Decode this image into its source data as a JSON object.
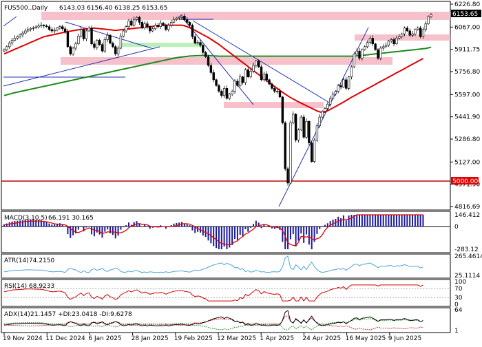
{
  "header": {
    "symbol": "FUS500..Daily",
    "ohlc": "6143.03 6156.40 6138.25 6153.65"
  },
  "colors": {
    "bull": "#000000",
    "bear": "#000000",
    "ma_red": "#e00000",
    "ma_green": "#1a8a1a",
    "zone_pink": "#f7c1cc",
    "zone_green": "#b9f2b9",
    "trend_blue": "#1f2fb0",
    "support_red": "#c00000",
    "price_label_bg": "#000000",
    "level_label_bg": "#e00000",
    "atr": "#4aa3d8",
    "rsi": "#d00000",
    "adx": "#000000",
    "diplus": "#1a7a1a",
    "diminus": "#cc0000",
    "macd_hist": "#1a1aa0",
    "macd_signal": "#e00000"
  },
  "chart_data": [
    {
      "type": "candlestick",
      "title": "FUS500..Daily",
      "ylim": [
        4816.69,
        6226.8
      ],
      "y_ticks": [
        "6226.80",
        "6067.00",
        "5911.75",
        "5756.80",
        "5597.00",
        "5441.90",
        "5286.80",
        "5127.00",
        "4971.90",
        "4816.69"
      ],
      "x_ticks": [
        "19 Nov 2024",
        "11 Dec 2024",
        "6 Jan 2025",
        "28 Jan 2025",
        "19 Feb 2025",
        "12 Mar 2025",
        "1 Apr 2025",
        "24 Apr 2025",
        "16 May 2025",
        "9 Jun 2025"
      ],
      "current_price": 6153.65,
      "current_price_label": "6153.65",
      "level": 5000.0,
      "level_label": "5000.00",
      "closes": [
        5910,
        5930,
        5955,
        5975,
        5990,
        6000,
        6012,
        6025,
        6040,
        6050,
        6058,
        6062,
        6068,
        6075,
        6080,
        6075,
        6070,
        6050,
        6040,
        6045,
        6060,
        6070,
        6055,
        6035,
        5930,
        5880,
        5920,
        5950,
        6005,
        6050,
        5985,
        6040,
        6060,
        5950,
        5925,
        5975,
        5945,
        5900,
        5980,
        6010,
        5955,
        5930,
        5880,
        5920,
        6005,
        6040,
        6070,
        6110,
        6080,
        6120,
        6135,
        6100,
        6060,
        6090,
        6070,
        6040,
        6055,
        6080,
        6070,
        6095,
        6080,
        6050,
        6080,
        6100,
        6120,
        6130,
        6135,
        6144,
        6117,
        6100,
        6080,
        6000,
        5955,
        5960,
        5940,
        5890,
        5860,
        5800,
        5750,
        5700,
        5660,
        5620,
        5590,
        5640,
        5570,
        5600,
        5620,
        5690,
        5660,
        5720,
        5680,
        5770,
        5720,
        5760,
        5800,
        5830,
        5790,
        5700,
        5740,
        5700,
        5670,
        5640,
        5620,
        5620,
        5580,
        5400,
        5080,
        4980,
        5400,
        5460,
        5280,
        5350,
        5440,
        5300,
        5410,
        5260,
        5130,
        5280,
        5380,
        5440,
        5480,
        5500,
        5530,
        5570,
        5600,
        5620,
        5660,
        5650,
        5700,
        5640,
        5720,
        5790,
        5880,
        5900,
        5850,
        5910,
        5930,
        5960,
        5990,
        5950,
        5910,
        5850,
        5920,
        5930,
        5940,
        5970,
        5980,
        5950,
        5990,
        6000,
        6020,
        6060,
        6040,
        6010,
        6020,
        6050,
        6060,
        6000,
        6050,
        6090,
        6140,
        6153.65
      ],
      "ma_red": [
        5880,
        5888,
        5896,
        5904,
        5912,
        5920,
        5928,
        5936,
        5944,
        5952,
        5960,
        5968,
        5976,
        5984,
        5992,
        6000,
        6004,
        6008,
        6012,
        6016,
        6020,
        6024,
        6028,
        6032,
        6036,
        6039,
        6042,
        6045,
        6048,
        6050,
        6052,
        6054,
        6056,
        6058,
        6060,
        6058,
        6056,
        6054,
        6052,
        6050,
        6048,
        6046,
        6044,
        6046,
        6048,
        6050,
        6052,
        6054,
        6056,
        6058,
        6060,
        6062,
        6064,
        6066,
        6068,
        6070,
        6072,
        6074,
        6076,
        6078,
        6080,
        6080,
        6080,
        6080,
        6080,
        6080,
        6080,
        6080,
        6076,
        6070,
        6062,
        6053,
        6044,
        6034,
        6024,
        6014,
        6004,
        5994,
        5982,
        5970,
        5958,
        5946,
        5932,
        5918,
        5904,
        5890,
        5876,
        5862,
        5848,
        5834,
        5820,
        5806,
        5792,
        5778,
        5764,
        5750,
        5736,
        5722,
        5708,
        5694,
        5680,
        5666,
        5653,
        5640,
        5626,
        5613,
        5600,
        5588,
        5576,
        5566,
        5556,
        5546,
        5537,
        5528,
        5519,
        5510,
        5501,
        5492,
        5483,
        5476,
        5472,
        5476,
        5484,
        5494,
        5504,
        5514,
        5524,
        5534,
        5545,
        5556,
        5567,
        5578,
        5588,
        5598,
        5608,
        5618,
        5628,
        5638,
        5648,
        5658,
        5668,
        5678,
        5688,
        5698,
        5708,
        5718,
        5728,
        5738,
        5748,
        5758,
        5768,
        5778,
        5788,
        5798,
        5808,
        5818,
        5828,
        5838,
        5848
      ],
      "ma_green": [
        5590,
        5595,
        5600,
        5605,
        5610,
        5614,
        5618,
        5622,
        5626,
        5630,
        5634,
        5638,
        5642,
        5646,
        5650,
        5654,
        5658,
        5662,
        5666,
        5670,
        5674,
        5678,
        5682,
        5686,
        5690,
        5694,
        5698,
        5702,
        5706,
        5710,
        5714,
        5718,
        5722,
        5726,
        5730,
        5734,
        5738,
        5742,
        5746,
        5750,
        5754,
        5758,
        5762,
        5766,
        5770,
        5774,
        5778,
        5782,
        5786,
        5790,
        5794,
        5798,
        5802,
        5806,
        5810,
        5814,
        5818,
        5822,
        5826,
        5830,
        5834,
        5838,
        5842,
        5846,
        5850,
        5853,
        5856,
        5859,
        5861,
        5863,
        5865,
        5866,
        5867,
        5868,
        5868,
        5868,
        5868,
        5868,
        5867,
        5866,
        5865,
        5864,
        5864,
        5864,
        5864,
        5864,
        5864,
        5864,
        5864,
        5864,
        5864,
        5864,
        5864,
        5864,
        5864,
        5864,
        5864,
        5864,
        5864,
        5864,
        5864,
        5864,
        5864,
        5864,
        5864,
        5864,
        5864,
        5864,
        5864,
        5864,
        5864,
        5864,
        5864,
        5864,
        5864,
        5864,
        5864,
        5864,
        5864,
        5864,
        5864,
        5864,
        5864,
        5864,
        5864,
        5864,
        5864,
        5864,
        5864,
        5864,
        5864,
        5864,
        5864,
        5866,
        5868,
        5870,
        5872,
        5874,
        5876,
        5878,
        5880,
        5882,
        5884,
        5886,
        5888,
        5890,
        5892,
        5894,
        5896,
        5898,
        5900,
        5902,
        5904,
        5906,
        5908,
        5910,
        5912,
        5914,
        5916,
        5918,
        5922,
        5926
      ]
    },
    {
      "type": "bar",
      "title": "MACD(3,10,5)",
      "values_label": "66.191 30.165",
      "y_ticks": [
        "146.412",
        "0",
        "-283.12"
      ],
      "ylim": [
        -283.12,
        146.412
      ]
    },
    {
      "type": "line",
      "title": "ATR(14)",
      "values_label": "74.2150",
      "y_ticks": [
        "265.4614",
        "25.1114"
      ],
      "ylim": [
        25.1114,
        265.4614
      ]
    },
    {
      "type": "line",
      "title": "RSI(14)",
      "values_label": "68.9233",
      "y_ticks": [
        "100",
        "70",
        "30",
        "0"
      ],
      "ylim": [
        0,
        100
      ]
    },
    {
      "type": "line",
      "title": "ADX(14)",
      "values_label": "21.1457 +DI:23.0418 -DI:9.6278",
      "y_ticks": [
        "64",
        "1"
      ],
      "ylim": [
        1,
        64
      ]
    }
  ]
}
